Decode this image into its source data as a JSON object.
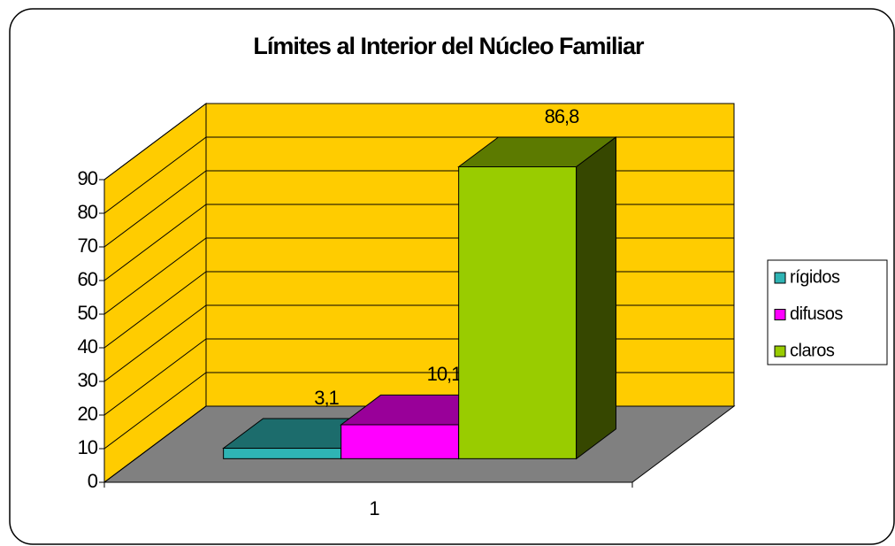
{
  "chart_data": {
    "type": "bar3d",
    "title": "Límites al Interior del Núcleo Familiar",
    "categories": [
      "1"
    ],
    "series": [
      {
        "name": "rígidos",
        "color": "#2fb4b4",
        "values": [
          3.1
        ],
        "value_labels": [
          "3,1"
        ]
      },
      {
        "name": "difusos",
        "color": "#ff00ff",
        "values": [
          10.1
        ],
        "value_labels": [
          "10,1"
        ]
      },
      {
        "name": "claros",
        "color": "#99cc00",
        "values": [
          86.8
        ],
        "value_labels": [
          "86,8"
        ]
      }
    ],
    "ylim": [
      0,
      90
    ],
    "yticks": [
      0,
      10,
      20,
      30,
      40,
      50,
      60,
      70,
      80,
      90
    ],
    "grid": true,
    "legend": "right"
  }
}
